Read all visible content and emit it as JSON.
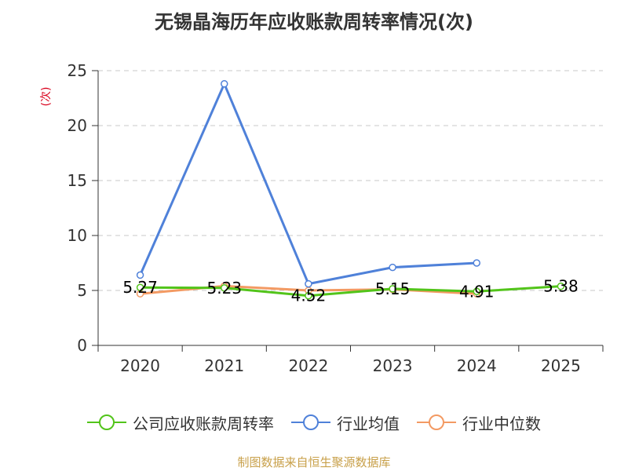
{
  "chart_data": {
    "type": "line",
    "title": "无锡晶海历年应收账款周转率情况(次)",
    "ylabel": "(次)",
    "categories": [
      "2020",
      "2021",
      "2022",
      "2023",
      "2024",
      "2025"
    ],
    "ylim": [
      0,
      25
    ],
    "yticks": [
      0,
      5,
      10,
      15,
      20,
      25
    ],
    "grid": true,
    "legend_position": "bottom",
    "series": [
      {
        "name": "公司应收账款周转率",
        "color": "#52c41a",
        "values": [
          5.27,
          5.23,
          4.52,
          5.15,
          4.91,
          5.38
        ],
        "labels": [
          "5.27",
          "5.23",
          "4.52",
          "5.15",
          "4.91",
          "5.38"
        ]
      },
      {
        "name": "行业均值",
        "color": "#4f81d9",
        "values": [
          6.4,
          23.8,
          5.6,
          7.1,
          7.5,
          null
        ]
      },
      {
        "name": "行业中位数",
        "color": "#f39a63",
        "values": [
          4.7,
          5.4,
          5.0,
          5.1,
          4.7,
          null
        ]
      }
    ]
  },
  "source": "制图数据来自恒生聚源数据库"
}
